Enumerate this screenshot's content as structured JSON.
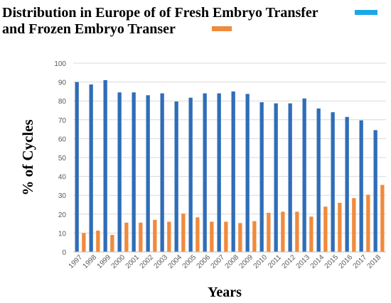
{
  "title": {
    "line1": "Distribution in Europe of of Fresh Embryo Transfer",
    "line2": "and Frozen Embryo Transer"
  },
  "colors": {
    "fresh": "#2f6db7",
    "frozen": "#f08a3c",
    "legend_fresh": "#1aa7e8",
    "legend_frozen": "#f08a3c",
    "grid": "#d9d9d9",
    "tick_text": "#595959"
  },
  "chart_data": {
    "type": "bar",
    "title": "Distribution in Europe of of Fresh Embryo Transfer and Frozen Embryo Transer",
    "xlabel": "Years",
    "ylabel": "% of Cycles",
    "ylim": [
      0,
      100
    ],
    "yticks": [
      0,
      10,
      20,
      30,
      40,
      50,
      60,
      70,
      80,
      90,
      100
    ],
    "grid": true,
    "legend": "top-right",
    "categories": [
      "1997",
      "1998",
      "1999",
      "2000",
      "2001",
      "2002",
      "2003",
      "2004",
      "2005",
      "2006",
      "2007",
      "2008",
      "2009",
      "2010",
      "2011",
      "2012",
      "2013",
      "2014",
      "2015",
      "2016",
      "2017",
      "2018"
    ],
    "series": [
      {
        "values": [
          90,
          88.7,
          91,
          84.5,
          84.5,
          83,
          84,
          79.7,
          81.7,
          84,
          84,
          85,
          83.7,
          79.3,
          78.7,
          78.7,
          81.3,
          76,
          74,
          71.5,
          69.7,
          64.5
        ]
      },
      {
        "values": [
          10,
          11.3,
          9,
          15.5,
          15.5,
          17,
          16,
          20.3,
          18.3,
          16,
          16,
          15.3,
          16.3,
          20.7,
          21.3,
          21.3,
          18.7,
          24,
          26,
          28.5,
          30.3,
          35.5
        ]
      }
    ]
  }
}
